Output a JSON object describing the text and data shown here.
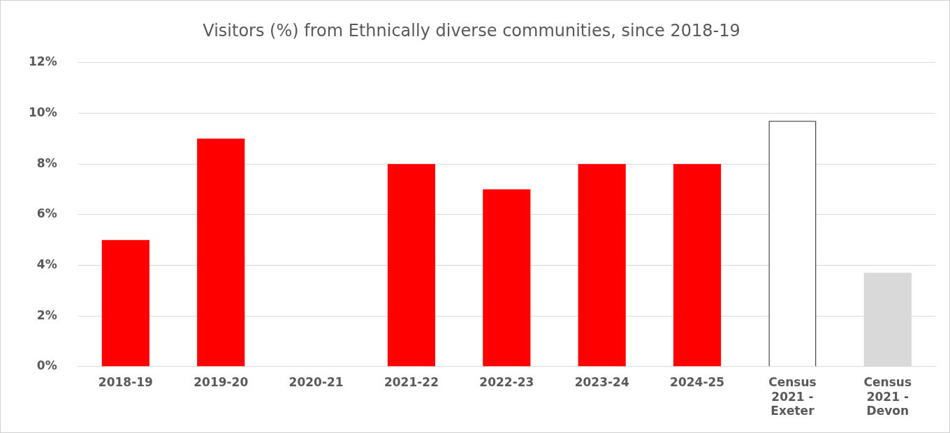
{
  "chart_data": {
    "type": "bar",
    "title": "Visitors (%) from Ethnically diverse communities, since 2018-19",
    "categories": [
      "2018-19",
      "2019-20",
      "2020-21",
      "2021-22",
      "2022-23",
      "2023-24",
      "2024-25",
      "Census 2021 - Exeter",
      "Census 2021 - Devon"
    ],
    "values": [
      5,
      9,
      null,
      8,
      7,
      8,
      8,
      9.7,
      3.7
    ],
    "colors": [
      "#ff0000",
      "#ff0000",
      "#ff0000",
      "#ff0000",
      "#ff0000",
      "#ff0000",
      "#ff0000",
      "#ffffff",
      "#d9d9d9"
    ],
    "ylim": [
      0,
      12
    ],
    "yticks": [
      {
        "value": 0,
        "label": "0%"
      },
      {
        "value": 2,
        "label": "2%"
      },
      {
        "value": 4,
        "label": "4%"
      },
      {
        "value": 6,
        "label": "6%"
      },
      {
        "value": 8,
        "label": "8%"
      },
      {
        "value": 10,
        "label": "10%"
      },
      {
        "value": 12,
        "label": "12%"
      }
    ],
    "grid": "y",
    "legend": false
  }
}
